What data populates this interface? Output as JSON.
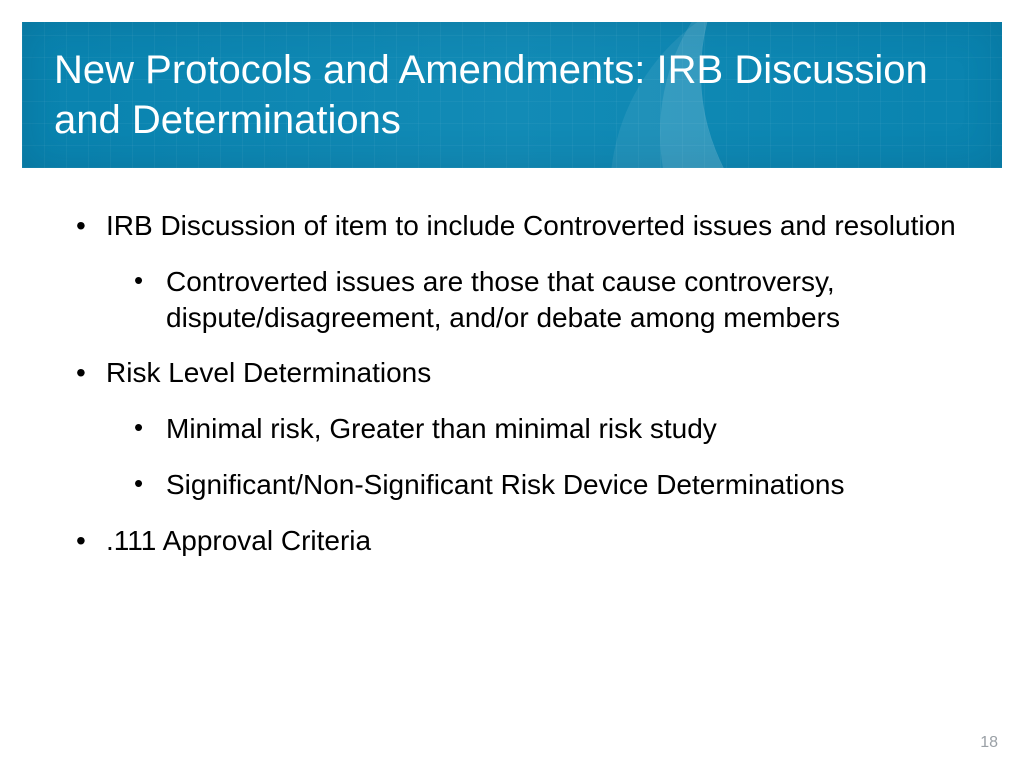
{
  "slide": {
    "title": "New Protocols and Amendments:  IRB Discussion and Determinations",
    "page_number": "18",
    "colors": {
      "title_bar_bg": "#0f89b3",
      "title_text": "#ffffff",
      "body_text": "#000000",
      "page_number": "#9aa0a6",
      "slide_bg": "#ffffff"
    },
    "typography": {
      "title_fontsize_pt": 30,
      "body_fontsize_pt": 21,
      "font_family": "Tahoma"
    },
    "bullets": [
      {
        "text": "IRB Discussion of item to include Controverted issues and resolution",
        "children": [
          {
            "text": "Controverted issues are those that cause controversy, dispute/disagreement, and/or debate among members"
          }
        ]
      },
      {
        "text": "Risk Level Determinations",
        "children": [
          {
            "text": "Minimal risk, Greater than minimal risk study"
          },
          {
            "text": "Significant/Non-Significant Risk Device Determinations"
          }
        ]
      },
      {
        "text": ".111 Approval Criteria",
        "children": []
      }
    ]
  }
}
